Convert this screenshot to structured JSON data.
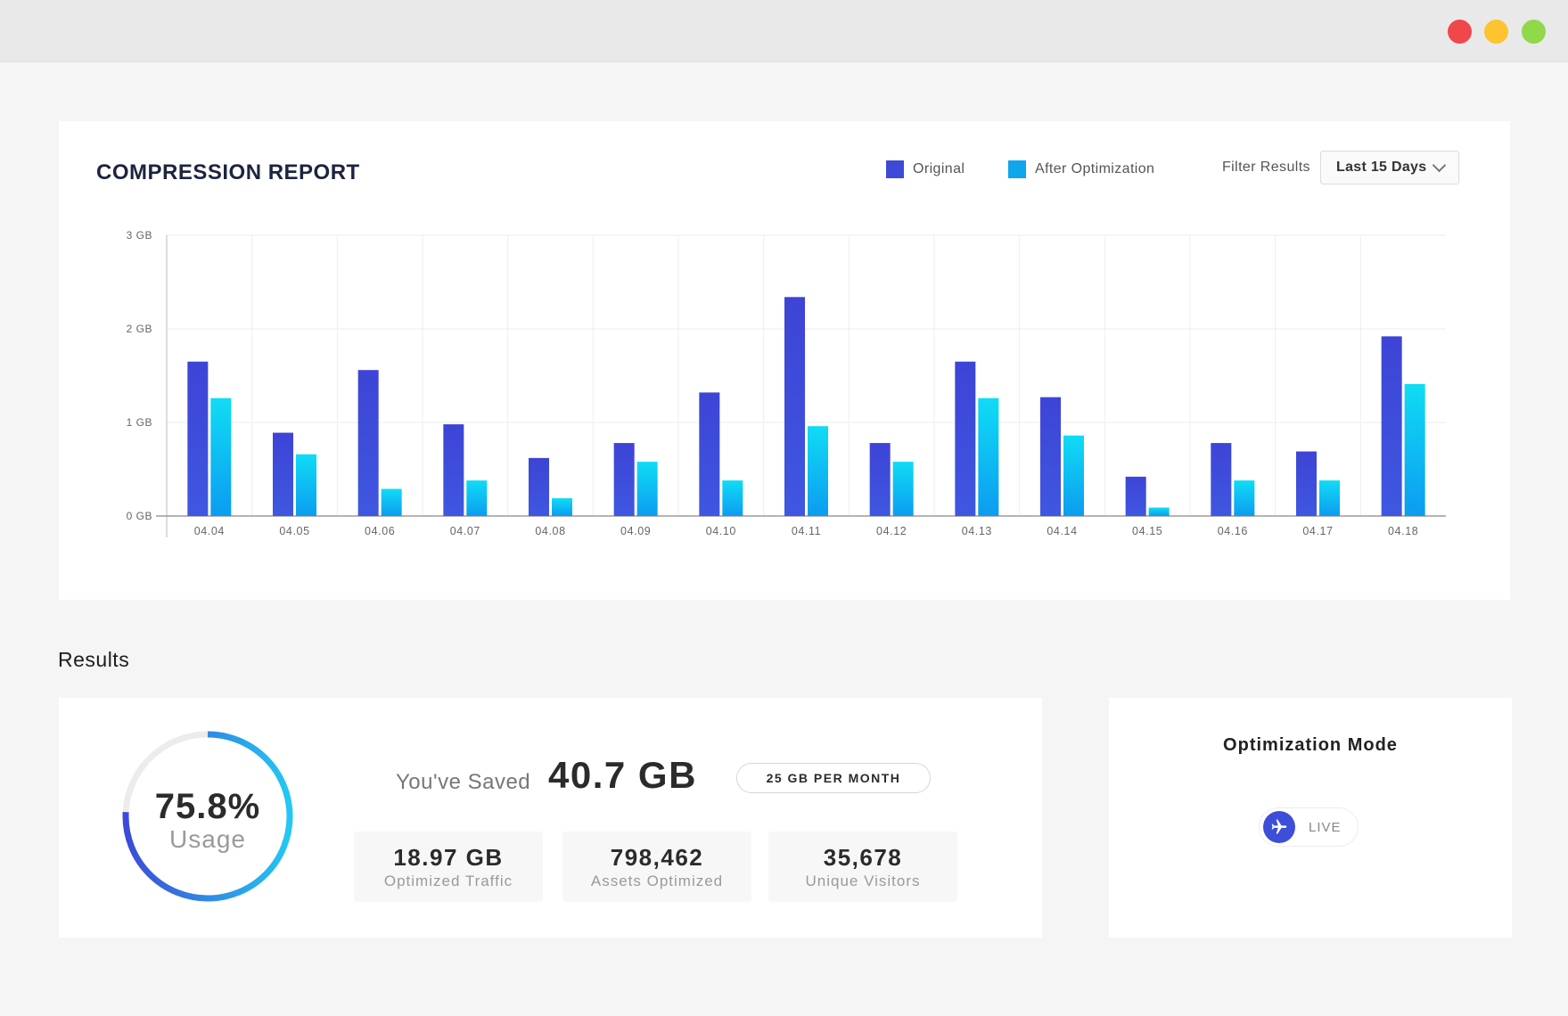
{
  "window": {
    "controls": [
      "close",
      "minimize",
      "maximize"
    ],
    "colors": {
      "close": "#f0474a",
      "minimize": "#fdc42f",
      "maximize": "#8fd94a"
    }
  },
  "report": {
    "title": "COMPRESSION REPORT",
    "legend": {
      "original": {
        "label": "Original",
        "color": "#3d4ad8"
      },
      "optimized": {
        "label": "After Optimization",
        "color": "#0fa6ee"
      }
    },
    "filter": {
      "label": "Filter Results",
      "selected": "Last 15 Days",
      "icon": "chevron-down-icon"
    }
  },
  "chart_data": {
    "type": "bar",
    "title": "COMPRESSION REPORT",
    "categories": [
      "04.04",
      "04.05",
      "04.06",
      "04.07",
      "04.08",
      "04.09",
      "04.10",
      "04.11",
      "04.12",
      "04.13",
      "04.14",
      "04.15",
      "04.16",
      "04.17",
      "04.18"
    ],
    "series": [
      {
        "name": "Original",
        "color": "#3d4ad8",
        "values": [
          1.65,
          0.89,
          1.56,
          0.98,
          0.62,
          0.78,
          1.32,
          2.34,
          0.78,
          1.65,
          1.27,
          0.42,
          0.78,
          0.69,
          1.92
        ]
      },
      {
        "name": "After Optimization",
        "color": "#0fa6ee",
        "values": [
          1.26,
          0.66,
          0.29,
          0.38,
          0.19,
          0.58,
          0.38,
          0.96,
          0.58,
          1.26,
          0.86,
          0.09,
          0.38,
          0.38,
          1.41
        ]
      }
    ],
    "y_ticks": [
      "0 GB",
      "1 GB",
      "2 GB",
      "3 GB"
    ],
    "ylim": [
      0,
      3
    ],
    "grid": true,
    "legend_position": "top-right"
  },
  "results": {
    "heading": "Results",
    "usage": {
      "percent": 75.8,
      "value_text": "75.8%",
      "label": "Usage"
    },
    "saved": {
      "label": "You've Saved",
      "value": "40.7 GB"
    },
    "plan": "25 GB PER MONTH",
    "stats": [
      {
        "value": "18.97 GB",
        "label": "Optimized Traffic"
      },
      {
        "value": "798,462",
        "label": "Assets Optimized"
      },
      {
        "value": "35,678",
        "label": "Unique Visitors"
      }
    ]
  },
  "mode": {
    "title": "Optimization Mode",
    "state": "LIVE",
    "icon": "airplane-icon"
  }
}
